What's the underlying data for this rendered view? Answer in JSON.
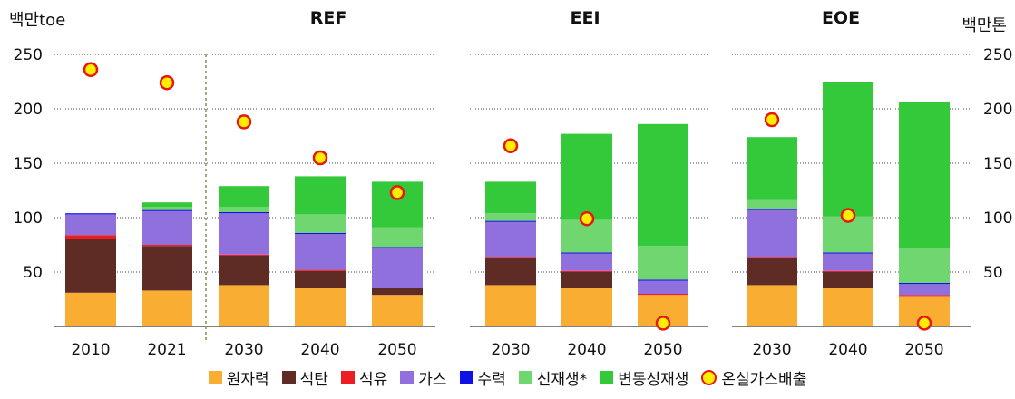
{
  "chart_data": {
    "type": "bar",
    "stacked": true,
    "left_unit": "백만toe",
    "right_unit": "백만톤",
    "y_ticks": [
      50,
      100,
      150,
      200,
      250
    ],
    "ylim": [
      0,
      250
    ],
    "grid": "dotted horizontal",
    "legend_position": "bottom",
    "panels": [
      {
        "title": "REF",
        "categories": [
          "2010",
          "2021",
          "2030",
          "2040",
          "2050"
        ],
        "series": [
          {
            "name": "원자력",
            "values": [
              31,
              33,
              38,
              35,
              29
            ]
          },
          {
            "name": "석탄",
            "values": [
              49,
              41,
              27,
              16,
              6
            ]
          },
          {
            "name": "석유",
            "values": [
              4,
              1,
              1,
              1,
              0
            ]
          },
          {
            "name": "가스",
            "values": [
              19,
              31,
              38,
              33,
              37
            ]
          },
          {
            "name": "수력",
            "values": [
              1,
              1,
              1,
              1,
              1
            ]
          },
          {
            "name": "신재생*",
            "values": [
              0,
              3,
              5,
              17,
              18
            ]
          },
          {
            "name": "변동성재생",
            "values": [
              0,
              4,
              19,
              35,
              42
            ]
          }
        ],
        "ghg": [
          236,
          224,
          188,
          155,
          123
        ]
      },
      {
        "title": "EEI",
        "categories": [
          "2030",
          "2040",
          "2050"
        ],
        "series": [
          {
            "name": "원자력",
            "values": [
              38,
              35,
              29
            ]
          },
          {
            "name": "석탄",
            "values": [
              25,
              15,
              0
            ]
          },
          {
            "name": "석유",
            "values": [
              1,
              1,
              1
            ]
          },
          {
            "name": "가스",
            "values": [
              32,
              16,
              12
            ]
          },
          {
            "name": "수력",
            "values": [
              1,
              1,
              1
            ]
          },
          {
            "name": "신재생*",
            "values": [
              7,
              30,
              31
            ]
          },
          {
            "name": "변동성재생",
            "values": [
              29,
              79,
              112
            ]
          }
        ],
        "ghg": [
          166,
          99,
          3
        ]
      },
      {
        "title": "EOE",
        "categories": [
          "2030",
          "2040",
          "2050"
        ],
        "series": [
          {
            "name": "원자력",
            "values": [
              38,
              35,
              28
            ]
          },
          {
            "name": "석탄",
            "values": [
              25,
              15,
              0
            ]
          },
          {
            "name": "석유",
            "values": [
              1,
              1,
              1
            ]
          },
          {
            "name": "가스",
            "values": [
              43,
              16,
              10
            ]
          },
          {
            "name": "수력",
            "values": [
              1,
              1,
              1
            ]
          },
          {
            "name": "신재생*",
            "values": [
              8,
              33,
              32
            ]
          },
          {
            "name": "변동성재생",
            "values": [
              58,
              124,
              134
            ]
          }
        ],
        "ghg": [
          190,
          102,
          3
        ]
      }
    ],
    "colors": {
      "원자력": "#f9ae33",
      "석탄": "#5e2b25",
      "석유": "#ee1c23",
      "가스": "#9070dc",
      "수력": "#1010e8",
      "신재생*": "#70d670",
      "변동성재생": "#33c93a",
      "온실가스배출": "#ffee00",
      "온실가스배출_border": "#e8160c"
    },
    "legend": [
      "원자력",
      "석탄",
      "석유",
      "가스",
      "수력",
      "신재생*",
      "변동성재생",
      "온실가스배출"
    ]
  }
}
